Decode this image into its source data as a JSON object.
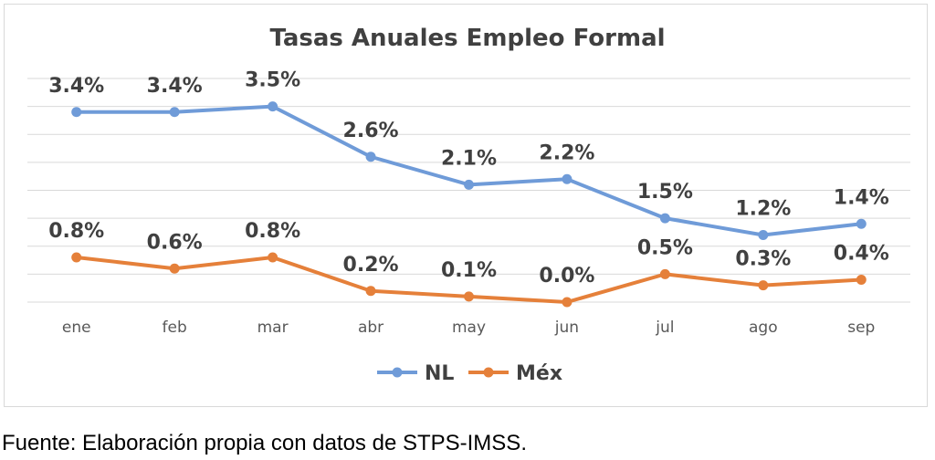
{
  "chart_data": {
    "type": "line",
    "title": "Tasas Anuales Empleo Formal",
    "categories": [
      "ene",
      "feb",
      "mar",
      "abr",
      "may",
      "jun",
      "jul",
      "ago",
      "sep"
    ],
    "series": [
      {
        "name": "NL",
        "color": "#6f9bd8",
        "values": [
          3.4,
          3.4,
          3.5,
          2.6,
          2.1,
          2.2,
          1.5,
          1.2,
          1.4
        ],
        "labels": [
          "3.4%",
          "3.4%",
          "3.5%",
          "2.6%",
          "2.1%",
          "2.2%",
          "1.5%",
          "1.2%",
          "1.4%"
        ]
      },
      {
        "name": "Méx",
        "color": "#e5803a",
        "values": [
          0.8,
          0.6,
          0.8,
          0.2,
          0.1,
          0.0,
          0.5,
          0.3,
          0.4
        ],
        "labels": [
          "0.8%",
          "0.6%",
          "0.8%",
          "0.2%",
          "0.1%",
          "0.0%",
          "0.5%",
          "0.3%",
          "0.4%"
        ]
      }
    ],
    "ylim": [
      0,
      4.0
    ],
    "grid": true,
    "legend": "bottom"
  },
  "footer": "Fuente: Elaboración propia con datos de STPS-IMSS."
}
